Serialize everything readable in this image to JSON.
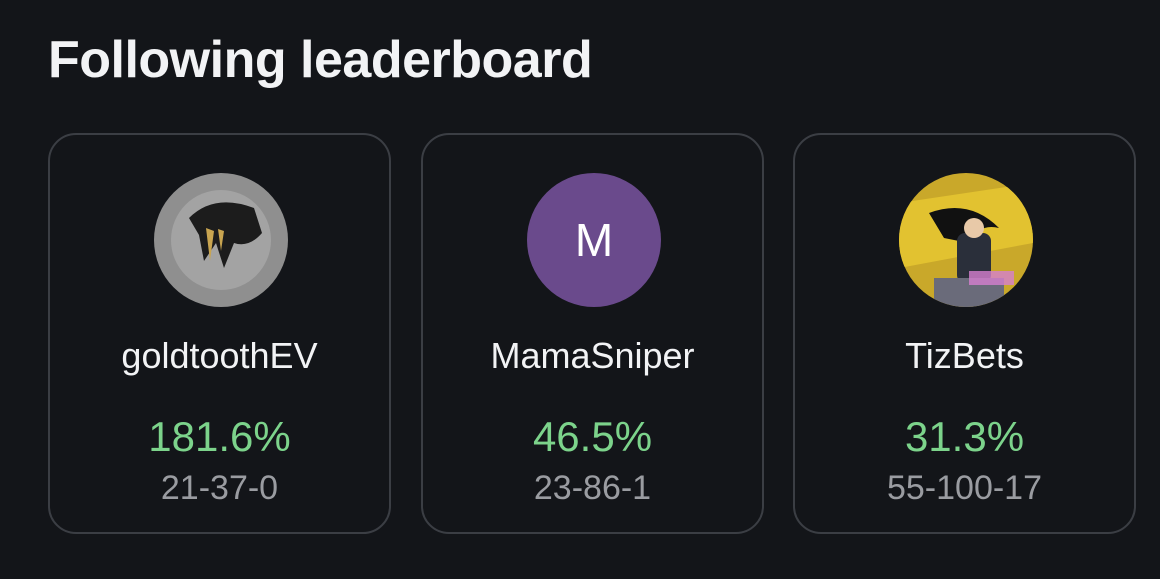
{
  "header": {
    "title": "Following leaderboard"
  },
  "cards": [
    {
      "name": "goldtoothEV",
      "roi": "181.6%",
      "record": "21-37-0"
    },
    {
      "name": "MamaSniper",
      "avatar_letter": "M",
      "roi": "46.5%",
      "record": "23-86-1"
    },
    {
      "name": "TizBets",
      "roi": "31.3%",
      "record": "55-100-17"
    }
  ]
}
